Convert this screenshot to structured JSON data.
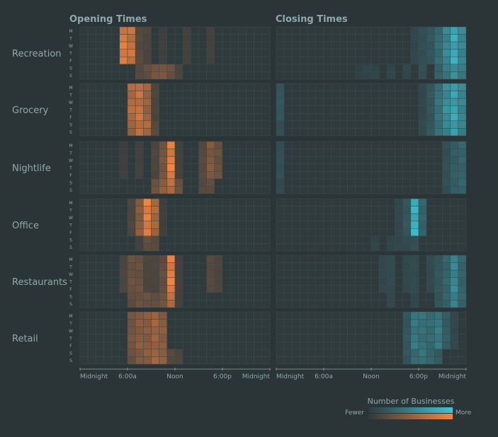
{
  "chart_data": {
    "type": "heatmap",
    "panel_titles": [
      "Opening Times",
      "Closing Times"
    ],
    "categories": [
      "Recreation",
      "Grocery",
      "Nightlife",
      "Office",
      "Restaurants",
      "Retail"
    ],
    "days": [
      "M",
      "T",
      "W",
      "T",
      "F",
      "S",
      "S"
    ],
    "x_ticks": {
      "opening": [
        "Midnight",
        "6:00a",
        "Noon",
        "6:00p",
        "Midnight"
      ],
      "closing": [
        "Midnight",
        "6:00a",
        "Noon",
        "6:00p",
        "Midnight"
      ]
    },
    "legend": {
      "title": "Number of Businesses",
      "low": "Fewer",
      "high": "More"
    },
    "colors": {
      "background": "#2b3437",
      "panel": "#2f3a3d",
      "grid": "#3c4a4d",
      "text": "#8fa9ad",
      "opening_high": "#f5853f",
      "closing_high": "#3fc4d4"
    },
    "series": {
      "opening": {
        "Recreation": {
          "weekday": {
            "5.5": 0.85,
            "6": 0.75,
            "7": 0.2,
            "8": 0.15,
            "10": 0.08,
            "13": 0.1,
            "16": 0.1
          },
          "weekend": {
            "7": 0.2,
            "8": 0.25,
            "9": 0.35,
            "10": 0.4,
            "11": 0.3,
            "12": 0.15
          }
        },
        "Grocery": {
          "weekday": {
            "6": 0.65,
            "7": 0.75,
            "8": 0.55,
            "9": 0.15
          },
          "weekend": {
            "6": 0.55,
            "7": 0.7,
            "8": 0.6,
            "9": 0.2
          }
        },
        "Nightlife": {
          "weekday": {
            "5": 0.08,
            "7": 0.1,
            "9": 0.15,
            "10": 0.35,
            "11": 0.9,
            "12": 0.1,
            "15": 0.2,
            "16": 0.4,
            "17": 0.3
          },
          "weekend": {
            "9": 0.3,
            "10": 0.5,
            "11": 0.7,
            "12": 0.3,
            "15": 0.2,
            "16": 0.25
          }
        },
        "Office": {
          "weekday": {
            "6": 0.15,
            "7": 0.45,
            "8": 0.9,
            "9": 0.6,
            "10": 0.08
          },
          "weekend": {
            "7": 0.1,
            "8": 0.25,
            "9": 0.2
          }
        },
        "Restaurants": {
          "weekday": {
            "5": 0.15,
            "6": 0.3,
            "7": 0.3,
            "8": 0.15,
            "9": 0.15,
            "10": 0.25,
            "11": 0.9,
            "12": 0.1,
            "16": 0.2,
            "17": 0.15
          },
          "weekend": {
            "6": 0.25,
            "7": 0.3,
            "8": 0.3,
            "9": 0.25,
            "10": 0.35,
            "11": 0.7,
            "12": 0.1
          }
        },
        "Retail": {
          "weekday": {
            "6": 0.35,
            "7": 0.45,
            "8": 0.45,
            "9": 0.55,
            "10": 0.45
          },
          "weekend": {
            "6": 0.3,
            "7": 0.4,
            "8": 0.45,
            "9": 0.55,
            "10": 0.5,
            "11": 0.2,
            "12": 0.15
          }
        }
      },
      "closing": {
        "Recreation": {
          "weekday": {
            "17": 0.1,
            "18": 0.15,
            "19": 0.2,
            "20": 0.35,
            "21": 0.55,
            "22": 0.8,
            "23": 0.55
          },
          "weekend": {
            "10": 0.05,
            "11": 0.08,
            "12": 0.08,
            "14": 0.08,
            "16": 0.1,
            "18": 0.15,
            "20": 0.3,
            "21": 0.45,
            "22": 0.6,
            "23": 0.45
          }
        },
        "Grocery": {
          "weekday": {
            "0": 0.2,
            "18": 0.1,
            "19": 0.2,
            "20": 0.4,
            "21": 0.6,
            "22": 0.75,
            "23": 0.55
          },
          "weekend": {
            "0": 0.15,
            "18": 0.12,
            "19": 0.2,
            "20": 0.4,
            "21": 0.55,
            "22": 0.7,
            "23": 0.5
          }
        },
        "Nightlife": {
          "weekday": {
            "0": 0.15,
            "21": 0.15,
            "22": 0.25,
            "23": 0.3
          },
          "weekend": {
            "0": 0.12,
            "21": 0.15,
            "22": 0.25,
            "23": 0.3
          }
        },
        "Office": {
          "weekday": {
            "15": 0.1,
            "16": 0.2,
            "17": 0.85,
            "18": 0.3
          },
          "weekend": {
            "12": 0.08,
            "14": 0.08,
            "15": 0.1,
            "16": 0.12,
            "17": 0.15
          }
        },
        "Restaurants": {
          "weekday": {
            "13": 0.1,
            "14": 0.12,
            "16": 0.1,
            "17": 0.12,
            "19": 0.12,
            "20": 0.2,
            "21": 0.3,
            "22": 0.55,
            "23": 0.3
          },
          "weekend": {
            "14": 0.1,
            "17": 0.1,
            "20": 0.2,
            "21": 0.3,
            "22": 0.5,
            "23": 0.3
          }
        },
        "Retail": {
          "weekday": {
            "16": 0.2,
            "17": 0.45,
            "18": 0.4,
            "19": 0.35,
            "20": 0.45,
            "21": 0.25,
            "22": 0.1
          },
          "weekend": {
            "16": 0.2,
            "17": 0.35,
            "18": 0.4,
            "19": 0.3,
            "20": 0.25
          }
        }
      }
    }
  }
}
